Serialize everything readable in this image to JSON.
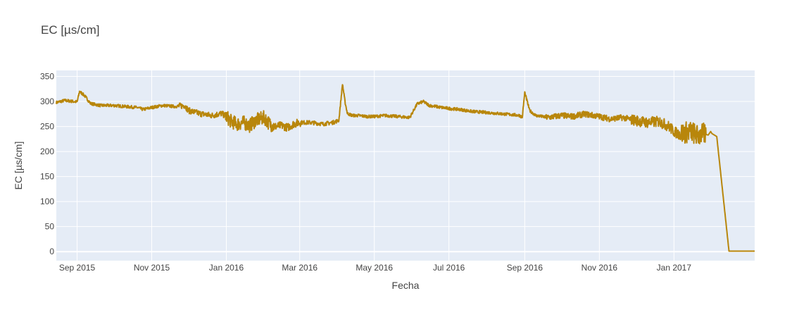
{
  "chart_data": {
    "type": "line",
    "title": "EC [µs/cm]",
    "xlabel": "Fecha",
    "ylabel": "EC [µs/cm]",
    "x_tick_labels": [
      "Sep 2015",
      "Nov 2015",
      "Jan 2016",
      "Mar 2016",
      "May 2016",
      "Jul 2016",
      "Sep 2016",
      "Nov 2016",
      "Jan 2017"
    ],
    "x_ticks": [
      "2015-09-01",
      "2015-11-01",
      "2016-01-01",
      "2016-03-01",
      "2016-05-01",
      "2016-07-01",
      "2016-09-01",
      "2016-11-01",
      "2017-01-01"
    ],
    "y_ticks": [
      0,
      50,
      100,
      150,
      200,
      250,
      300,
      350
    ],
    "xlim": [
      "2015-08-15",
      "2017-03-08"
    ],
    "ylim": [
      -18,
      362
    ],
    "grid": true,
    "legend": false,
    "colors": {
      "line": "#b8860b",
      "plot_bg": "#e5ecf6",
      "grid": "#ffffff",
      "tick_text": "#444444"
    },
    "series": [
      {
        "x": [
          "2015-08-15",
          "2015-08-22",
          "2015-08-29",
          "2015-09-01",
          "2015-09-03",
          "2015-09-07",
          "2015-09-12",
          "2015-09-20",
          "2015-10-01",
          "2015-10-10",
          "2015-10-20",
          "2015-10-25",
          "2015-11-01",
          "2015-11-10",
          "2015-11-20",
          "2015-11-28",
          "2015-12-01",
          "2015-12-10",
          "2015-12-20",
          "2015-12-28",
          "2016-01-01",
          "2016-01-05",
          "2016-01-10",
          "2016-01-15",
          "2016-01-20",
          "2016-01-25",
          "2016-02-01",
          "2016-02-05",
          "2016-02-10",
          "2016-02-15",
          "2016-02-20",
          "2016-02-25",
          "2016-03-01",
          "2016-03-10",
          "2016-03-20",
          "2016-03-28",
          "2016-04-02",
          "2016-04-05",
          "2016-04-07",
          "2016-04-09",
          "2016-04-11",
          "2016-04-13",
          "2016-04-18",
          "2016-04-25",
          "2016-05-01",
          "2016-05-10",
          "2016-05-20",
          "2016-05-30",
          "2016-06-05",
          "2016-06-10",
          "2016-06-15",
          "2016-06-25",
          "2016-07-01",
          "2016-07-10",
          "2016-07-20",
          "2016-08-01",
          "2016-08-10",
          "2016-08-20",
          "2016-08-28",
          "2016-08-30",
          "2016-09-01",
          "2016-09-05",
          "2016-09-10",
          "2016-09-20",
          "2016-10-01",
          "2016-10-10",
          "2016-10-20",
          "2016-11-01",
          "2016-11-10",
          "2016-11-20",
          "2016-12-01",
          "2016-12-10",
          "2016-12-20",
          "2016-12-28",
          "2017-01-01",
          "2017-01-05",
          "2017-01-10",
          "2017-01-15",
          "2017-01-20",
          "2017-01-25",
          "2017-01-29",
          "2017-01-31",
          "2017-02-01",
          "2017-02-05",
          "2017-02-15",
          "2017-03-08"
        ],
        "values": [
          298,
          302,
          300,
          299,
          320,
          312,
          296,
          292,
          292,
          290,
          288,
          284,
          288,
          292,
          290,
          292,
          282,
          276,
          272,
          276,
          270,
          260,
          255,
          258,
          252,
          262,
          268,
          256,
          250,
          252,
          248,
          255,
          258,
          258,
          255,
          258,
          262,
          335,
          300,
          276,
          274,
          272,
          272,
          270,
          270,
          272,
          270,
          268,
          295,
          300,
          292,
          288,
          286,
          284,
          280,
          278,
          276,
          274,
          272,
          268,
          318,
          282,
          272,
          268,
          272,
          270,
          275,
          270,
          265,
          268,
          262,
          258,
          260,
          250,
          240,
          235,
          238,
          240,
          232,
          235,
          233,
          240,
          236,
          230,
          1,
          1
        ]
      }
    ]
  }
}
